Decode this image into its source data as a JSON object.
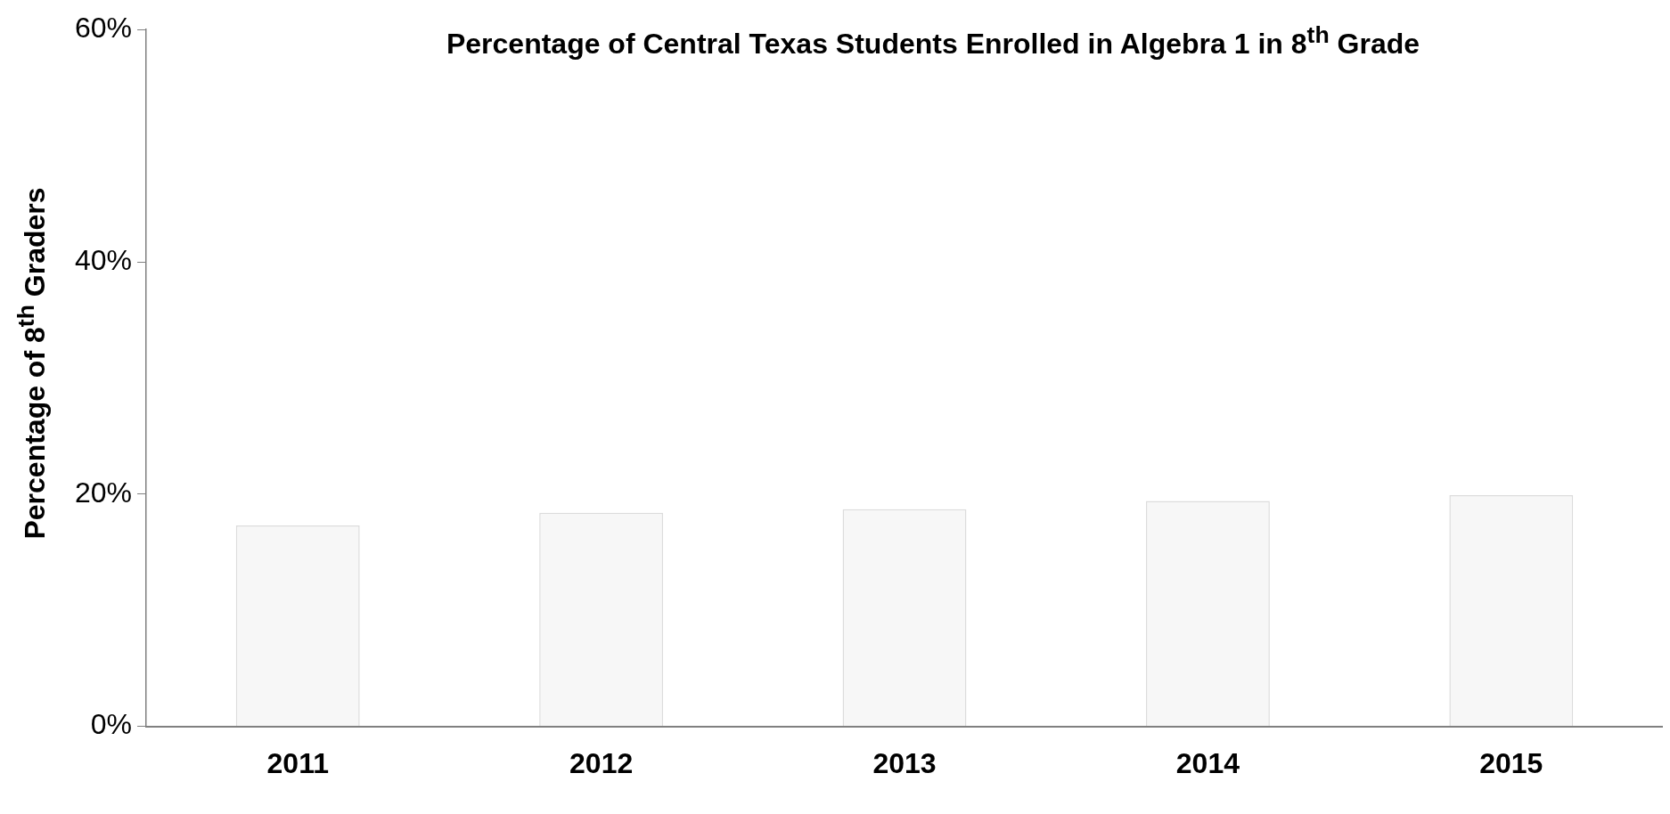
{
  "chart_data": {
    "type": "bar",
    "title": "Percentage of Central Texas Students Enrolled in Algebra 1 in 8$^{th}$ Grade",
    "ylabel": "Percentage of 8$^{th}$ Graders",
    "categories": [
      "2011",
      "2012",
      "2013",
      "2014",
      "2015"
    ],
    "values": [
      17.3,
      18.4,
      18.7,
      19.4,
      19.9
    ],
    "color": "#f7f7f7",
    "ylim": [
      0,
      60
    ],
    "yticks": [
      {
        "value": 0,
        "label": "0%"
      },
      {
        "value": 20,
        "label": "20%"
      },
      {
        "value": 40,
        "label": "40%"
      },
      {
        "value": 60,
        "label": "60%"
      }
    ]
  }
}
